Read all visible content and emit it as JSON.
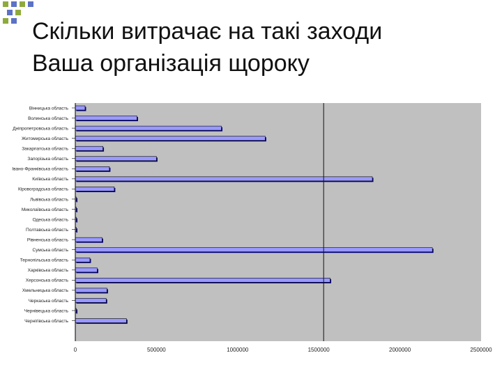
{
  "slide": {
    "title_line1": "Скільки витрачає на такі заходи",
    "title_line2": "Ваша організація щороку"
  },
  "colors": {
    "plot_background": "#c0c0c0",
    "bar_fill": "#9999ff",
    "bar_shadow": "#000080",
    "deco_green": "#8faa3c",
    "deco_blue": "#5c72c4"
  },
  "chart_data": {
    "type": "bar",
    "orientation": "horizontal",
    "categories": [
      "Вінницька область",
      "Волинська область",
      "Дніпропетровська область",
      "Житомирська область",
      "Закарпатська область",
      "Запорізька область",
      "Івано-Франківська область",
      "Київська область",
      "Кіровоградська область",
      "Львівська область",
      "Миколаївська область",
      "Одеська область",
      "Полтавська область",
      "Рівненська область",
      "Сумська область",
      "Тернопільська область",
      "Харківська область",
      "Херсонська область",
      "Хмельницька область",
      "Черкаська область",
      "Чернівецька область",
      "Чернігівська область"
    ],
    "values": [
      60000,
      380000,
      900000,
      1170000,
      170000,
      500000,
      210000,
      1830000,
      240000,
      5000,
      5000,
      5000,
      5000,
      165000,
      2200000,
      90000,
      135000,
      1570000,
      195000,
      190000,
      5000,
      315000
    ],
    "x_ticks": [
      "0",
      "500000",
      "1000000",
      "1500000",
      "2000000",
      "2500000"
    ],
    "xlim": [
      0,
      2500000
    ],
    "reference_line_x": 1530000,
    "grid": false,
    "legend": "none"
  }
}
